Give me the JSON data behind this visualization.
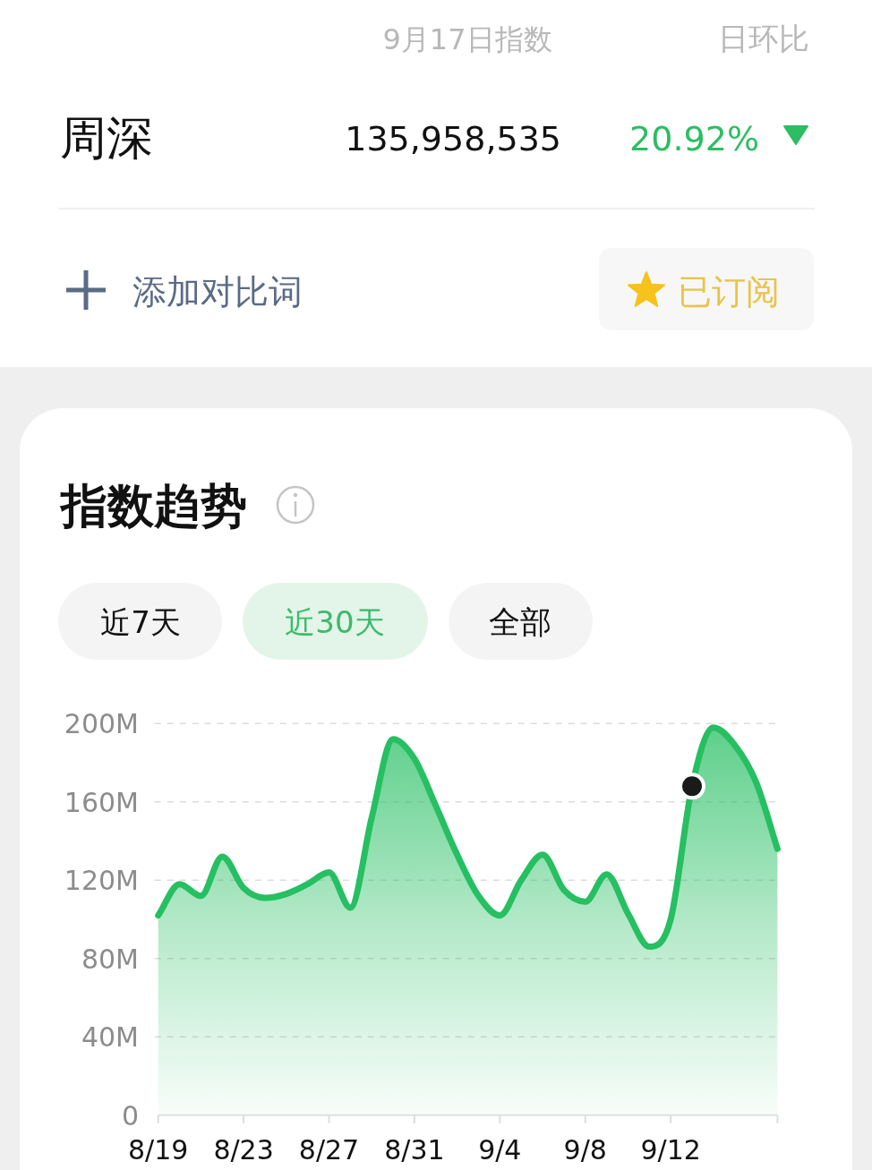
{
  "chart_data": {
    "type": "area",
    "title": "指数趋势",
    "annotations": [
      "9月17日指数",
      "日环比",
      "周深",
      "135,958,535",
      "20.92%",
      "添加对比词",
      "已订阅",
      "近7天",
      "近30天",
      "全部"
    ],
    "categories": [
      "8/19",
      null,
      null,
      null,
      "8/23",
      null,
      null,
      null,
      "8/27",
      null,
      null,
      null,
      "8/31",
      null,
      null,
      null,
      "9/4",
      null,
      null,
      null,
      "9/8",
      null,
      null,
      null,
      "9/12",
      null,
      null,
      null,
      null,
      null
    ],
    "series": [
      {
        "color": "#26bf62",
        "values": [
          102,
          118,
          112,
          132,
          116,
          111,
          113,
          118,
          124,
          106,
          152,
          192,
          182,
          158,
          133,
          112,
          102,
          120,
          133,
          115,
          109,
          123,
          103,
          86,
          100,
          168,
          198,
          189,
          170,
          136
        ]
      },
      {
        "type": "scatter",
        "color": "#1a1a1a",
        "marker": "circle",
        "values": [
          null,
          null,
          null,
          null,
          null,
          null,
          null,
          null,
          null,
          null,
          null,
          null,
          null,
          null,
          null,
          null,
          null,
          null,
          null,
          null,
          null,
          null,
          null,
          null,
          null,
          168,
          null,
          null,
          null,
          null
        ]
      }
    ],
    "ylim": [
      0,
      200
    ],
    "yticks": [
      0,
      {
        "value": 40,
        "label": "40M"
      },
      {
        "value": 80,
        "label": "80M"
      },
      {
        "value": 120,
        "label": "120M"
      },
      {
        "value": 160,
        "label": "160M"
      },
      {
        "value": 200,
        "label": "200M"
      }
    ],
    "grid": "y"
  }
}
